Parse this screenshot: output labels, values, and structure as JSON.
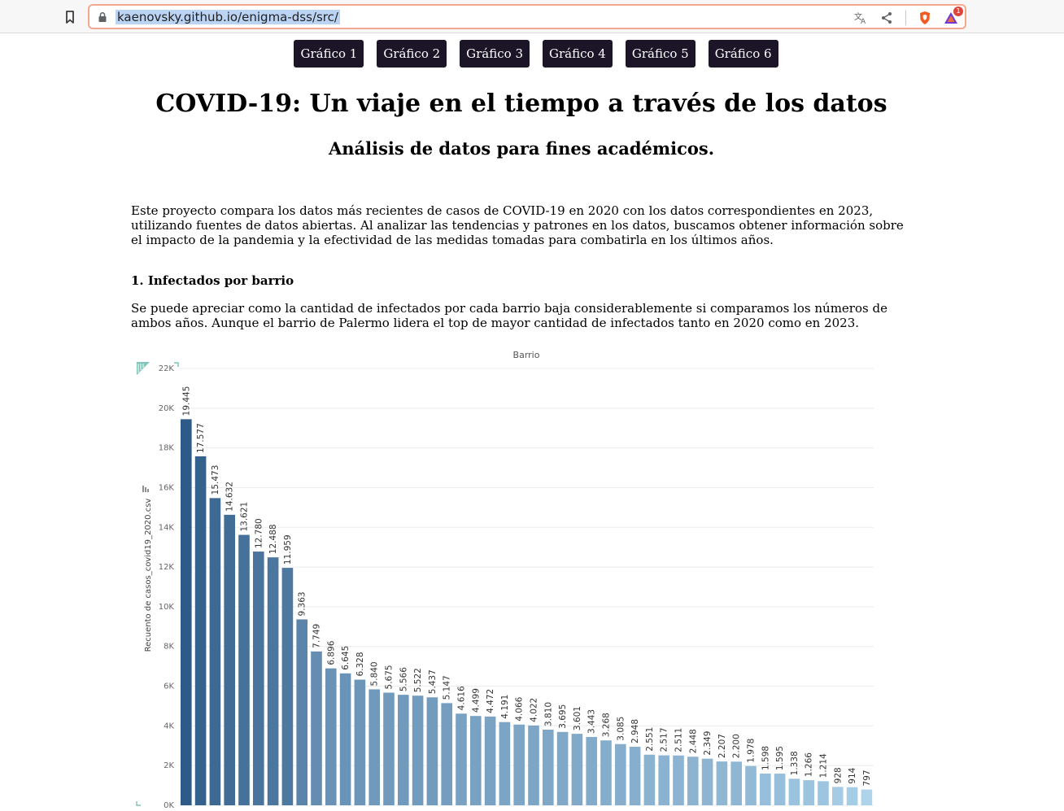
{
  "browser": {
    "url": "kaenovsky.github.io/enigma-dss/src/",
    "rewards_badge": "1",
    "icons": [
      "bookmark-icon",
      "lock-icon",
      "translate-icon",
      "share-icon",
      "brave-shield-icon",
      "brave-rewards-icon"
    ]
  },
  "nav": {
    "buttons": [
      "Gráfico 1",
      "Gráfico 2",
      "Gráfico 3",
      "Gráfico 4",
      "Gráfico 5",
      "Gráfico 6"
    ],
    "button_color": "#1c1528"
  },
  "page": {
    "title": "COVID-19: Un viaje en el tiempo a través de los datos",
    "subtitle": "Análisis de datos para fines académicos.",
    "intro": "Este proyecto compara los datos más recientes de casos de COVID-19 en 2020 con los datos correspondientes en 2023, utilizando fuentes de datos abiertas. Al analizar las tendencias y patrones en los datos, buscamos obtener información sobre el impacto de la pandemia y la efectividad de las medidas tomadas para combatirla en los últimos años.",
    "section1_heading": "1. Infectados por barrio",
    "section1_text": "Se puede apreciar como la cantidad de infectados por cada barrio baja considerablemente si comparamos los números de ambos años. Aunque el barrio de Palermo lidera el top de mayor cantidad de infectados tanto en 2020 como en 2023."
  },
  "chart_data": {
    "type": "bar",
    "title": "Barrio",
    "xlabel": "",
    "ylabel": "Recuento de casos_covid19_2020.csv",
    "ylim": [
      0,
      22000
    ],
    "yticks": [
      0,
      2000,
      4000,
      6000,
      8000,
      10000,
      12000,
      14000,
      16000,
      18000,
      20000,
      22000
    ],
    "ytick_labels": [
      "0K",
      "2K",
      "4K",
      "6K",
      "8K",
      "10K",
      "12K",
      "14K",
      "16K",
      "18K",
      "20K",
      "22K"
    ],
    "grid": true,
    "values": [
      19445,
      17577,
      15473,
      14632,
      13621,
      12780,
      12488,
      11959,
      9363,
      7749,
      6896,
      6645,
      6328,
      5840,
      5675,
      5566,
      5522,
      5437,
      5147,
      4616,
      4499,
      4472,
      4191,
      4066,
      4022,
      3810,
      3695,
      3601,
      3443,
      3268,
      3085,
      2948,
      2551,
      2517,
      2511,
      2448,
      2349,
      2207,
      2200,
      1978,
      1598,
      1595,
      1338,
      1266,
      1214,
      928,
      914,
      797
    ],
    "data_labels": [
      "19.445",
      "17.577",
      "15.473",
      "14.632",
      "13.621",
      "12.780",
      "12.488",
      "11.959",
      "9.363",
      "7.749",
      "6.896",
      "6.645",
      "6.328",
      "5.840",
      "5.675",
      "5.566",
      "5.522",
      "5.437",
      "5.147",
      "4.616",
      "4.499",
      "4.472",
      "4.191",
      "4.066",
      "4.022",
      "3.810",
      "3.695",
      "3.601",
      "3.443",
      "3.268",
      "3.085",
      "2.948",
      "2.551",
      "2.517",
      "2.511",
      "2.448",
      "2.349",
      "2.207",
      "2.200",
      "1.978",
      "1.598",
      "1.595",
      "1.338",
      "1.266",
      "1.214",
      "928",
      "914",
      "797"
    ],
    "color_dark": "#2e5a87",
    "color_light": "#aed4ec",
    "grid_color": "#ececec"
  }
}
